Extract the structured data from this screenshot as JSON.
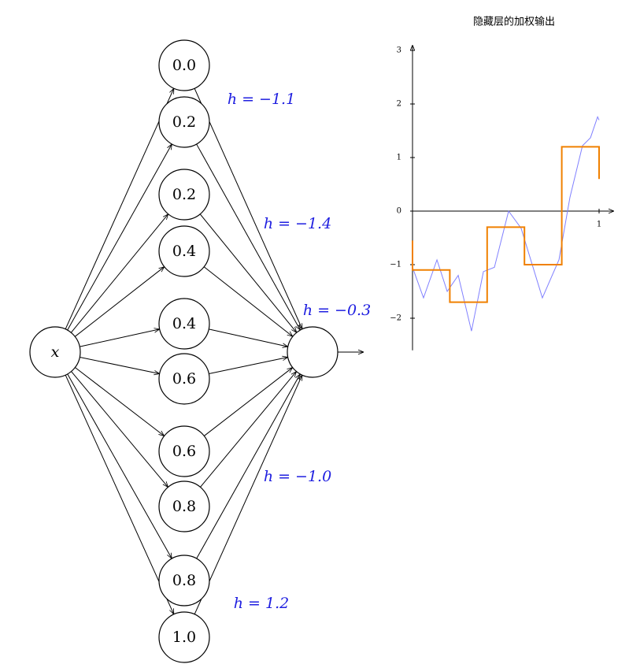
{
  "network": {
    "input": {
      "label": "x"
    },
    "hidden": [
      {
        "label": "0.0"
      },
      {
        "label": "0.2"
      },
      {
        "label": "0.2"
      },
      {
        "label": "0.4"
      },
      {
        "label": "0.4"
      },
      {
        "label": "0.6"
      },
      {
        "label": "0.6"
      },
      {
        "label": "0.8"
      },
      {
        "label": "0.8"
      },
      {
        "label": "1.0"
      }
    ],
    "weights": [
      "h = −1.1",
      "h = −1.4",
      "h = −0.3",
      "h = −1.0",
      "h = 1.2"
    ]
  },
  "chart_data": {
    "type": "line",
    "title": "隐藏层的加权输出",
    "xlim": [
      0,
      1.08
    ],
    "ylim": [
      -2.6,
      3.1
    ],
    "xticks": [
      1
    ],
    "yticks": [
      {
        "value": -2,
        "label": "−2"
      },
      {
        "value": -1,
        "label": "−1"
      },
      0,
      1,
      2,
      3
    ],
    "series": [
      {
        "color": "#8080ff",
        "x": [
          0,
          0.059,
          0.131,
          0.186,
          0.245,
          0.316,
          0.38,
          0.439,
          0.515,
          0.582,
          0.696,
          0.785,
          0.844,
          0.911,
          0.954,
          0.992,
          1.0
        ],
        "values": [
          -1.05,
          -1.62,
          -0.91,
          -1.5,
          -1.2,
          -2.24,
          -1.13,
          -1.05,
          0,
          -0.32,
          -1.62,
          -0.91,
          0.26,
          1.22,
          1.37,
          1.76,
          1.7
        ]
      },
      {
        "color": "#f08000",
        "x": [
          0,
          0,
          0.2,
          0.2,
          0.4,
          0.4,
          0.6,
          0.6,
          0.8,
          0.8,
          1,
          1
        ],
        "values": [
          -0.55,
          -1.1,
          -1.1,
          -1.7,
          -1.7,
          -0.3,
          -0.3,
          -1.0,
          -1.0,
          1.2,
          1.2,
          0.6
        ]
      }
    ]
  }
}
